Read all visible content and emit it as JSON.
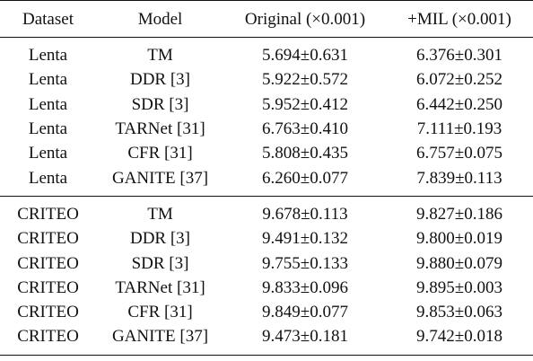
{
  "table": {
    "headers": [
      "Dataset",
      "Model",
      "Original (×0.001)",
      "+MIL (×0.001)"
    ],
    "groups": [
      {
        "rows": [
          [
            "Lenta",
            "TM",
            "5.694±0.631",
            "6.376±0.301"
          ],
          [
            "Lenta",
            "DDR [3]",
            "5.922±0.572",
            "6.072±0.252"
          ],
          [
            "Lenta",
            "SDR [3]",
            "5.952±0.412",
            "6.442±0.250"
          ],
          [
            "Lenta",
            "TARNet [31]",
            "6.763±0.410",
            "7.111±0.193"
          ],
          [
            "Lenta",
            "CFR [31]",
            "5.808±0.435",
            "6.757±0.075"
          ],
          [
            "Lenta",
            "GANITE [37]",
            "6.260±0.077",
            "7.839±0.113"
          ]
        ]
      },
      {
        "rows": [
          [
            "CRITEO",
            "TM",
            "9.678±0.113",
            "9.827±0.186"
          ],
          [
            "CRITEO",
            "DDR [3]",
            "9.491±0.132",
            "9.800±0.019"
          ],
          [
            "CRITEO",
            "SDR [3]",
            "9.755±0.133",
            "9.880±0.079"
          ],
          [
            "CRITEO",
            "TARNet [31]",
            "9.833±0.096",
            "9.895±0.003"
          ],
          [
            "CRITEO",
            "CFR [31]",
            "9.849±0.077",
            "9.853±0.063"
          ],
          [
            "CRITEO",
            "GANITE [37]",
            "9.473±0.181",
            "9.742±0.018"
          ]
        ]
      }
    ]
  }
}
